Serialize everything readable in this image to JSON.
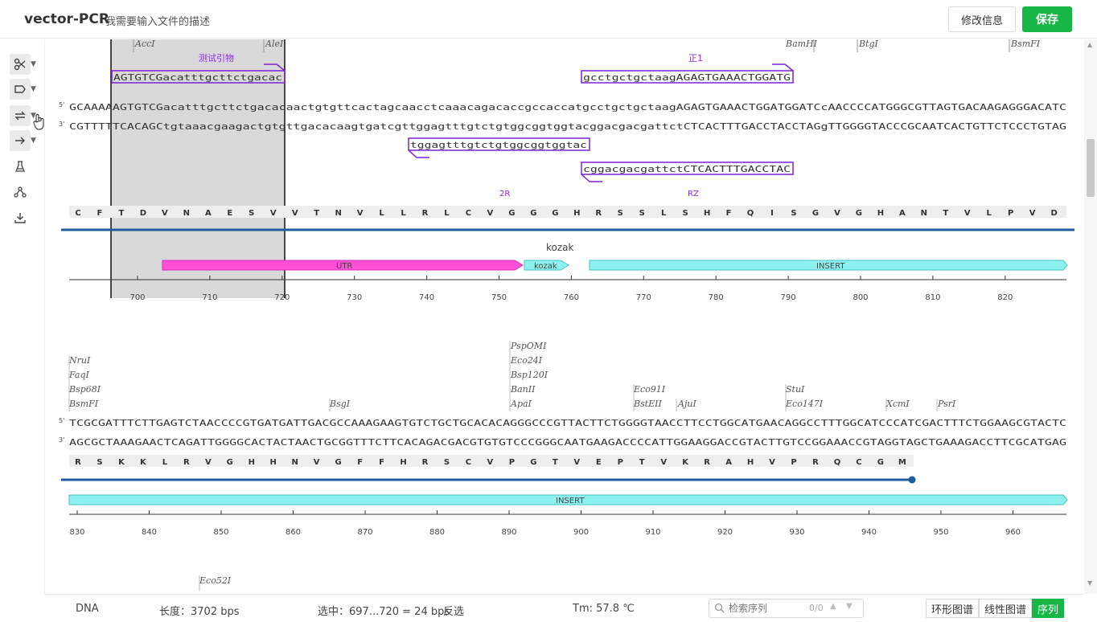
{
  "header": {
    "title": "vector-PCR",
    "description": "我需要输入文件的描述",
    "edit_label": "修改信息",
    "save_label": "保存"
  },
  "toolbar": {
    "tools": [
      "scissors-icon",
      "tag-icon",
      "swap-icon",
      "arrow-right-icon",
      "flask-icon",
      "nodes-icon",
      "download-icon"
    ]
  },
  "block1": {
    "enzymes": [
      "AccI",
      "AleI",
      "BamHI",
      "BtgI",
      "BsmFI"
    ],
    "primer_top_left": {
      "label": "测试引物",
      "seq": "AGTGTCGacatttgcttctgacac"
    },
    "primer_top_right": {
      "label": "正1",
      "seq": "gcctgctgctaagAGAGTGAAACTGGATG"
    },
    "strand5": "GCAAAAAGTGTCGacatttgcttctgacacaactgtgttcactagcaacctcaaacagacaccgccaccatgcctgctgctaagAGAGTGAAACTGGATGGATCcAACCCCATGGGCGTTAGTGACAAGAGGGACATC",
    "strand3": "CGTTTTTCACAGCtgtaaacgaagactgtgttgacacaagtgatcgttggagtttgtctgtggcggtggtacggacgacgattctCTCACTTTGACCTACCTAGgTTGGGGTACCCGCAATCACTGTTCTCCCTGTAG",
    "primer_bottom1": {
      "seq": "tggagtttgtctgtggcggtggtac"
    },
    "primer_bottom2": {
      "seq": "cggacgacgattctCTCACTTTGACCTAC"
    },
    "label_2r": "2R",
    "label_rz": "RZ",
    "aa": [
      "C",
      "F",
      "T",
      "D",
      "V",
      "N",
      "A",
      "E",
      "S",
      "V",
      "V",
      "T",
      "N",
      "V",
      "L",
      "L",
      "R",
      "L",
      "C",
      "V",
      "G",
      "G",
      "G",
      "H",
      "R",
      "S",
      "S",
      "L",
      "S",
      "H",
      "F",
      "Q",
      "I",
      "S",
      "G",
      "V",
      "G",
      "H",
      "A",
      "N",
      "T",
      "V",
      "L",
      "P",
      "V",
      "D"
    ],
    "features": {
      "utr": "UTR",
      "kozak": "kozak",
      "kozak_above": "kozak",
      "insert": "INSERT"
    },
    "ticks": [
      "700",
      "710",
      "720",
      "730",
      "740",
      "750",
      "760",
      "770",
      "780",
      "790",
      "800",
      "810",
      "820"
    ]
  },
  "block2": {
    "enzymes_col1": [
      "NruI",
      "FaqI",
      "Bsp68I",
      "BsmFI"
    ],
    "enzymes_col2": [
      "PspOMI",
      "Eco24I",
      "Bsp120I",
      "BanII",
      "ApaI"
    ],
    "enzymes_other": [
      "BsgI",
      "Eco91I",
      "BstEII",
      "AjuI",
      "StuI",
      "Eco147I",
      "XcmI",
      "PsrI"
    ],
    "strand5": "TCGCGATTTCTTGAGTCTAACCCCGTGATGATTGACGCCAAAGAAGTGTCTGCTGCACACAGGGCCCGTTACTTCTGGGGTAACCTTCCTGGCATGAACAGGCCTTTGGCATCCCATCGACTTTCTGGAAGCGTACTC",
    "strand3": "AGCGCTAAAGAACTCAGATTGGGGCACTACTAACTGCGGTTTCTTCACAGACGACGTGTGTCCCGGGCAATGAAGACCCCATTGGAAGGACCGTACTTGTCCGGAAACCGTAGGTAGCTGAAAGACCTTCGCATGAG",
    "aa": [
      "R",
      "S",
      "K",
      "K",
      "L",
      "R",
      "V",
      "G",
      "H",
      "H",
      "N",
      "V",
      "G",
      "F",
      "F",
      "H",
      "R",
      "S",
      "C",
      "V",
      "P",
      "G",
      "T",
      "V",
      "E",
      "P",
      "T",
      "V",
      "K",
      "R",
      "A",
      "H",
      "V",
      "P",
      "R",
      "Q",
      "C",
      "G",
      "M"
    ],
    "feature": "INSERT",
    "ticks": [
      "830",
      "840",
      "850",
      "860",
      "870",
      "880",
      "890",
      "900",
      "910",
      "920",
      "930",
      "940",
      "950",
      "960"
    ]
  },
  "block3": {
    "enzyme": "Eco52I"
  },
  "status": {
    "type": "DNA",
    "length": "长度：3702 bps",
    "selection": "选中：697...720 = 24 bps",
    "reverse": "反选",
    "tm": "Tm: 57.8 ℃",
    "search_placeholder": "检索序列",
    "search_count": "0/0"
  },
  "view_tabs": [
    "环形图谱",
    "线性图谱",
    "序列"
  ],
  "colors": {
    "primary": "#18b547",
    "primer": "#8a2be2",
    "utr": "#ff4fd8",
    "insert": "#8ff0f0",
    "orf": "#1f5b9e"
  }
}
